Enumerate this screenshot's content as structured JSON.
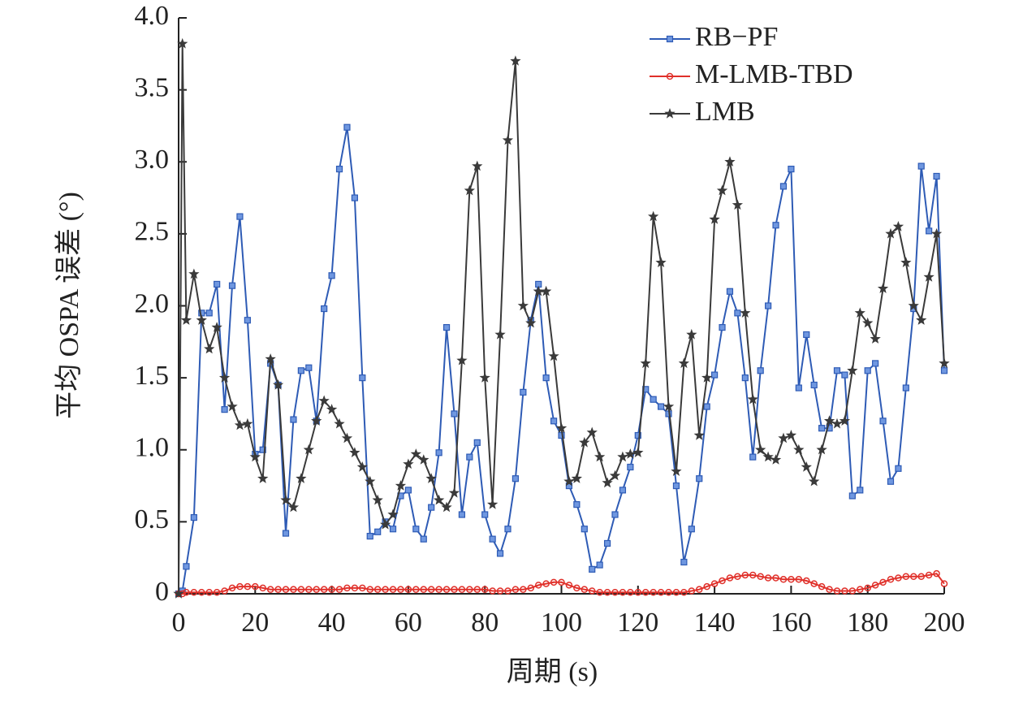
{
  "chart_data": {
    "type": "line",
    "xlabel": "周期 (s)",
    "ylabel": "平均 OSPA 误差 (°)",
    "xlim": [
      0,
      200
    ],
    "xticks": [
      0,
      20,
      40,
      60,
      80,
      100,
      120,
      140,
      160,
      180,
      200
    ],
    "ylim": [
      0,
      4
    ],
    "yticks": [
      0,
      0.5,
      {
        "value": 1,
        "label": "1.0"
      },
      1.5,
      {
        "value": 2,
        "label": "2.0"
      },
      2.5,
      {
        "value": 3,
        "label": "3.0"
      },
      3.5,
      {
        "value": 4,
        "label": "4.0"
      }
    ],
    "legend": "upper right",
    "x": [
      0,
      1,
      2,
      4,
      6,
      8,
      10,
      12,
      14,
      16,
      18,
      20,
      22,
      24,
      26,
      28,
      30,
      32,
      34,
      36,
      38,
      40,
      42,
      44,
      46,
      48,
      50,
      52,
      54,
      56,
      58,
      60,
      62,
      64,
      66,
      68,
      70,
      72,
      74,
      76,
      78,
      80,
      82,
      84,
      86,
      88,
      90,
      92,
      94,
      96,
      98,
      100,
      102,
      104,
      106,
      108,
      110,
      112,
      114,
      116,
      118,
      120,
      122,
      124,
      126,
      128,
      130,
      132,
      134,
      136,
      138,
      140,
      142,
      144,
      146,
      148,
      150,
      152,
      154,
      156,
      158,
      160,
      162,
      164,
      166,
      168,
      170,
      172,
      174,
      176,
      178,
      180,
      182,
      184,
      186,
      188,
      190,
      192,
      194,
      196,
      198,
      200
    ],
    "series": [
      {
        "name": "RB−PF",
        "color": "#2e5bb5",
        "marker": "square",
        "values": [
          0,
          0.02,
          0.19,
          0.53,
          1.95,
          1.95,
          2.15,
          1.28,
          2.14,
          2.62,
          1.9,
          0.97,
          1.0,
          1.6,
          1.45,
          0.42,
          1.21,
          1.55,
          1.57,
          1.2,
          1.98,
          2.21,
          2.95,
          3.24,
          2.75,
          1.5,
          0.4,
          0.43,
          0.5,
          0.45,
          0.68,
          0.72,
          0.45,
          0.38,
          0.6,
          0.98,
          1.85,
          1.25,
          0.55,
          0.95,
          1.05,
          0.55,
          0.38,
          0.28,
          0.45,
          0.8,
          1.4,
          1.9,
          2.15,
          1.5,
          1.2,
          1.1,
          0.75,
          0.62,
          0.45,
          0.17,
          0.2,
          0.35,
          0.55,
          0.72,
          0.88,
          1.1,
          1.42,
          1.35,
          1.3,
          1.25,
          0.75,
          0.22,
          0.45,
          0.8,
          1.3,
          1.52,
          1.85,
          2.1,
          1.95,
          1.5,
          0.95,
          1.55,
          2.0,
          2.56,
          2.83,
          2.95,
          1.43,
          1.8,
          1.45,
          1.15,
          1.15,
          1.55,
          1.52,
          0.68,
          0.72,
          1.55,
          1.6,
          1.2,
          0.78,
          0.87,
          1.43,
          1.98,
          2.97,
          2.52,
          2.9,
          1.55
        ]
      },
      {
        "name": "M-LMB-TBD",
        "color": "#e0302a",
        "marker": "circle",
        "values": [
          0,
          0,
          0.01,
          0.01,
          0.01,
          0.01,
          0.01,
          0.02,
          0.04,
          0.05,
          0.05,
          0.05,
          0.04,
          0.03,
          0.03,
          0.03,
          0.03,
          0.03,
          0.03,
          0.03,
          0.03,
          0.03,
          0.03,
          0.04,
          0.04,
          0.04,
          0.03,
          0.03,
          0.03,
          0.03,
          0.03,
          0.03,
          0.03,
          0.03,
          0.03,
          0.03,
          0.03,
          0.03,
          0.03,
          0.03,
          0.03,
          0.03,
          0.02,
          0.02,
          0.02,
          0.03,
          0.03,
          0.04,
          0.06,
          0.07,
          0.08,
          0.08,
          0.06,
          0.04,
          0.03,
          0.02,
          0.01,
          0.01,
          0.01,
          0.01,
          0.01,
          0.01,
          0.01,
          0.01,
          0.01,
          0.01,
          0.01,
          0.01,
          0.02,
          0.03,
          0.05,
          0.07,
          0.09,
          0.11,
          0.12,
          0.13,
          0.13,
          0.12,
          0.11,
          0.11,
          0.1,
          0.1,
          0.1,
          0.09,
          0.07,
          0.05,
          0.03,
          0.02,
          0.02,
          0.02,
          0.03,
          0.04,
          0.06,
          0.08,
          0.1,
          0.11,
          0.12,
          0.12,
          0.12,
          0.13,
          0.14,
          0.07
        ]
      },
      {
        "name": "LMB",
        "color": "#3a3a3a",
        "marker": "star",
        "values": [
          0,
          3.82,
          1.9,
          2.22,
          1.9,
          1.7,
          1.85,
          1.5,
          1.3,
          1.17,
          1.18,
          0.95,
          0.8,
          1.63,
          1.45,
          0.65,
          0.6,
          0.8,
          1.0,
          1.2,
          1.34,
          1.28,
          1.18,
          1.08,
          0.98,
          0.88,
          0.78,
          0.65,
          0.48,
          0.55,
          0.75,
          0.9,
          0.97,
          0.93,
          0.8,
          0.65,
          0.6,
          0.7,
          1.62,
          2.8,
          2.97,
          1.5,
          0.62,
          1.8,
          3.15,
          3.7,
          2.0,
          1.88,
          2.1,
          2.1,
          1.65,
          1.15,
          0.78,
          0.8,
          1.05,
          1.12,
          0.95,
          0.77,
          0.82,
          0.95,
          0.97,
          0.98,
          1.6,
          2.62,
          2.3,
          1.3,
          0.85,
          1.6,
          1.8,
          1.1,
          1.5,
          2.6,
          2.8,
          3.0,
          2.7,
          1.95,
          1.35,
          1.0,
          0.95,
          0.93,
          1.08,
          1.1,
          1.0,
          0.88,
          0.78,
          1.0,
          1.2,
          1.18,
          1.2,
          1.55,
          1.95,
          1.88,
          1.77,
          2.12,
          2.5,
          2.55,
          2.3,
          2.0,
          1.9,
          2.2,
          2.5,
          1.6
        ]
      }
    ]
  }
}
